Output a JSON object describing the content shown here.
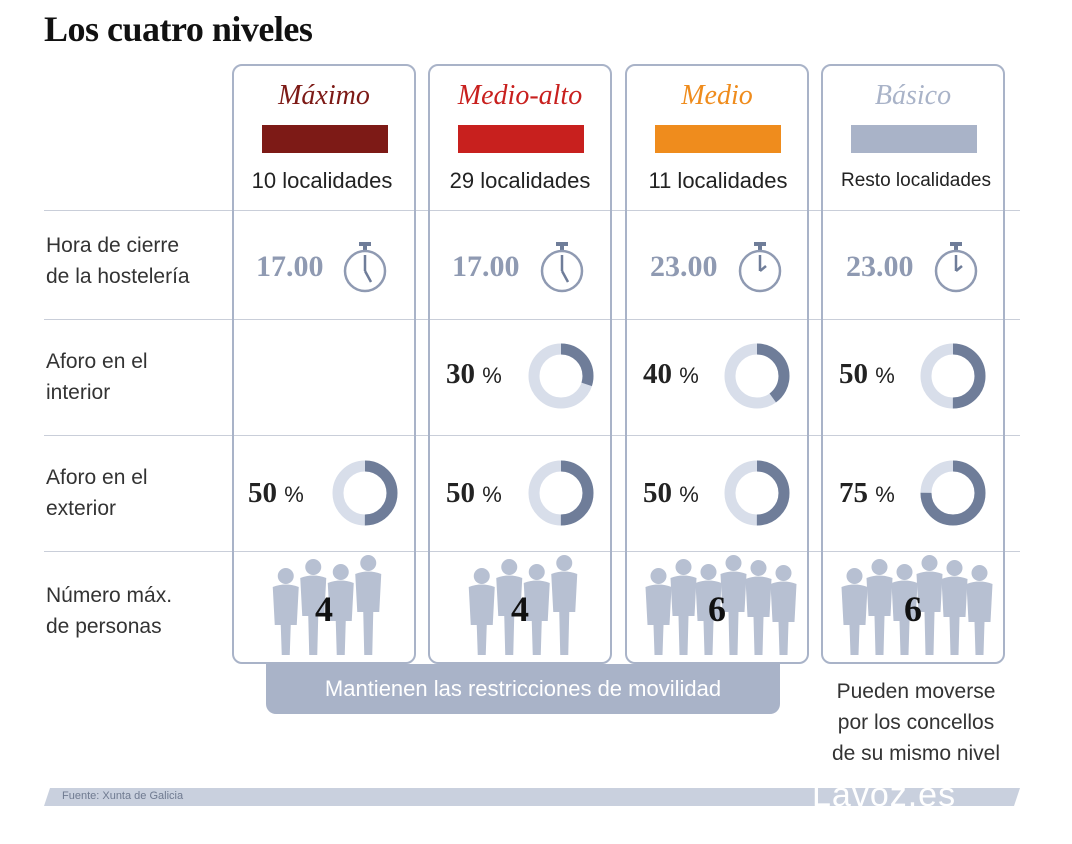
{
  "title": "Los cuatro niveles",
  "levels": [
    {
      "name": "Máximo",
      "color": "#7d1a16",
      "count": "10 localidades",
      "hour": "17.00",
      "interior": "",
      "exterior": "50",
      "people": "4"
    },
    {
      "name": "Medio-alto",
      "color": "#c8201e",
      "count": "29 localidades",
      "hour": "17.00",
      "interior": "30",
      "exterior": "50",
      "people": "4"
    },
    {
      "name": "Medio",
      "color": "#ef8c1d",
      "count": "11 localidades",
      "hour": "23.00",
      "interior": "40",
      "exterior": "50",
      "people": "6"
    },
    {
      "name": "Básico",
      "color": "#a9b3c8",
      "count": "Resto localidades",
      "hour": "23.00",
      "interior": "50",
      "exterior": "75",
      "people": "6"
    }
  ],
  "rows": {
    "hora_1": "Hora de cierre",
    "hora_2": "de la hostelería",
    "aforo_int_1": "Aforo en el",
    "aforo_int_2": "interior",
    "aforo_ext_1": "Aforo en el",
    "aforo_ext_2": "exterior",
    "personas_1": "Número máx.",
    "personas_2": "de personas"
  },
  "pct_sign": "%",
  "restricciones": "Mantienen las restricciones de movilidad",
  "movilidad_1": "Pueden moverse",
  "movilidad_2": "por los concellos",
  "movilidad_3": "de su mismo nivel",
  "fuente": "Fuente:  Xunta de Galicia",
  "brand": "Lavoz.es",
  "colors": {
    "frame": "#a9b3c8",
    "ring_bg": "#d8deea",
    "ring_fg": "#6f7d99",
    "hour": "#8f9ab2"
  }
}
